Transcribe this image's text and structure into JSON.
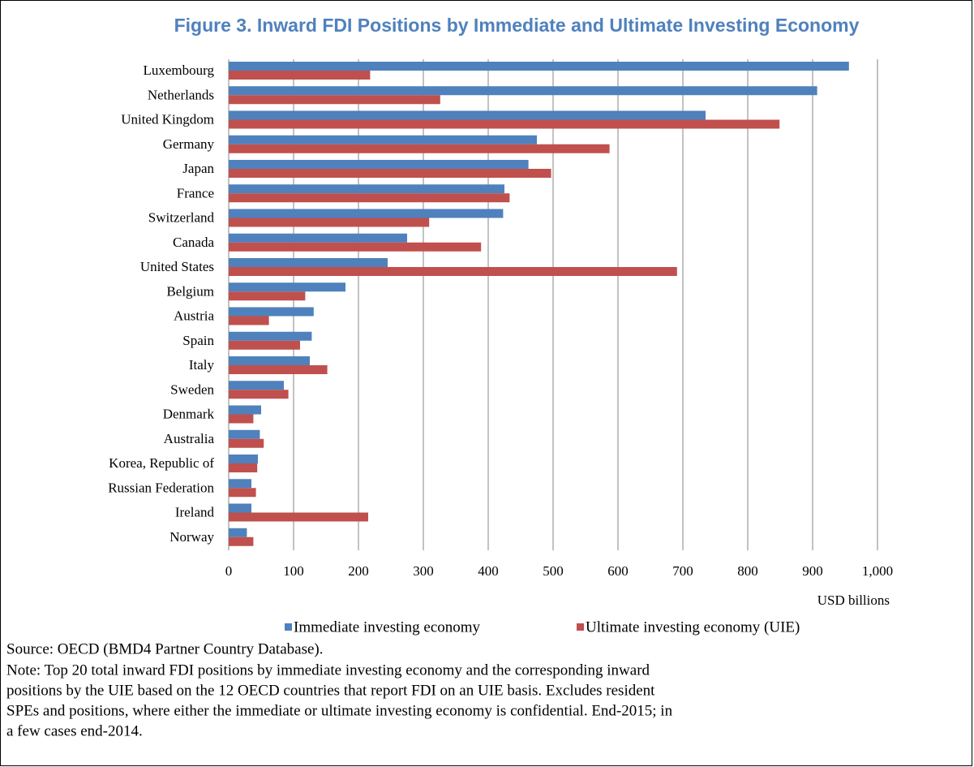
{
  "chart_data": {
    "type": "bar",
    "orientation": "horizontal",
    "title": "Figure 3. Inward FDI Positions by Immediate and Ultimate Investing Economy",
    "x_label": "USD billions",
    "categories": [
      "Luxembourg",
      "Netherlands",
      "United Kingdom",
      "Germany",
      "Japan",
      "France",
      "Switzerland",
      "Canada",
      "United States",
      "Belgium",
      "Austria",
      "Spain",
      "Italy",
      "Sweden",
      "Denmark",
      "Australia",
      "Korea, Republic of",
      "Russian Federation",
      "Ireland",
      "Norway"
    ],
    "series": [
      {
        "name": "Immediate investing economy",
        "color": "#4f81bd",
        "values": [
          956,
          907,
          735,
          475,
          462,
          425,
          423,
          275,
          245,
          180,
          131,
          128,
          125,
          85,
          50,
          48,
          45,
          35,
          35,
          28
        ]
      },
      {
        "name": "Ultimate investing economy (UIE)",
        "color": "#c0504d",
        "values": [
          218,
          326,
          849,
          587,
          497,
          433,
          309,
          389,
          691,
          118,
          62,
          110,
          152,
          92,
          38,
          54,
          44,
          42,
          215,
          38
        ]
      }
    ],
    "xlim": [
      0,
      1000
    ],
    "xticks": [
      0,
      100,
      200,
      300,
      400,
      500,
      600,
      700,
      800,
      900,
      {
        "value": 1000,
        "label": "1,000"
      }
    ],
    "grid": true,
    "legend": "bottom",
    "source": "Source: OECD (BMD4 Partner Country Database).",
    "note": [
      "Note: Top 20 total inward FDI positions by immediate investing economy and the corresponding inward",
      "positions by the UIE based on the 12 OECD countries that report FDI on an UIE basis. Excludes resident",
      "SPEs and positions, where either the immediate or ultimate investing economy is confidential. End-2015; in",
      "a few cases end-2014."
    ]
  }
}
